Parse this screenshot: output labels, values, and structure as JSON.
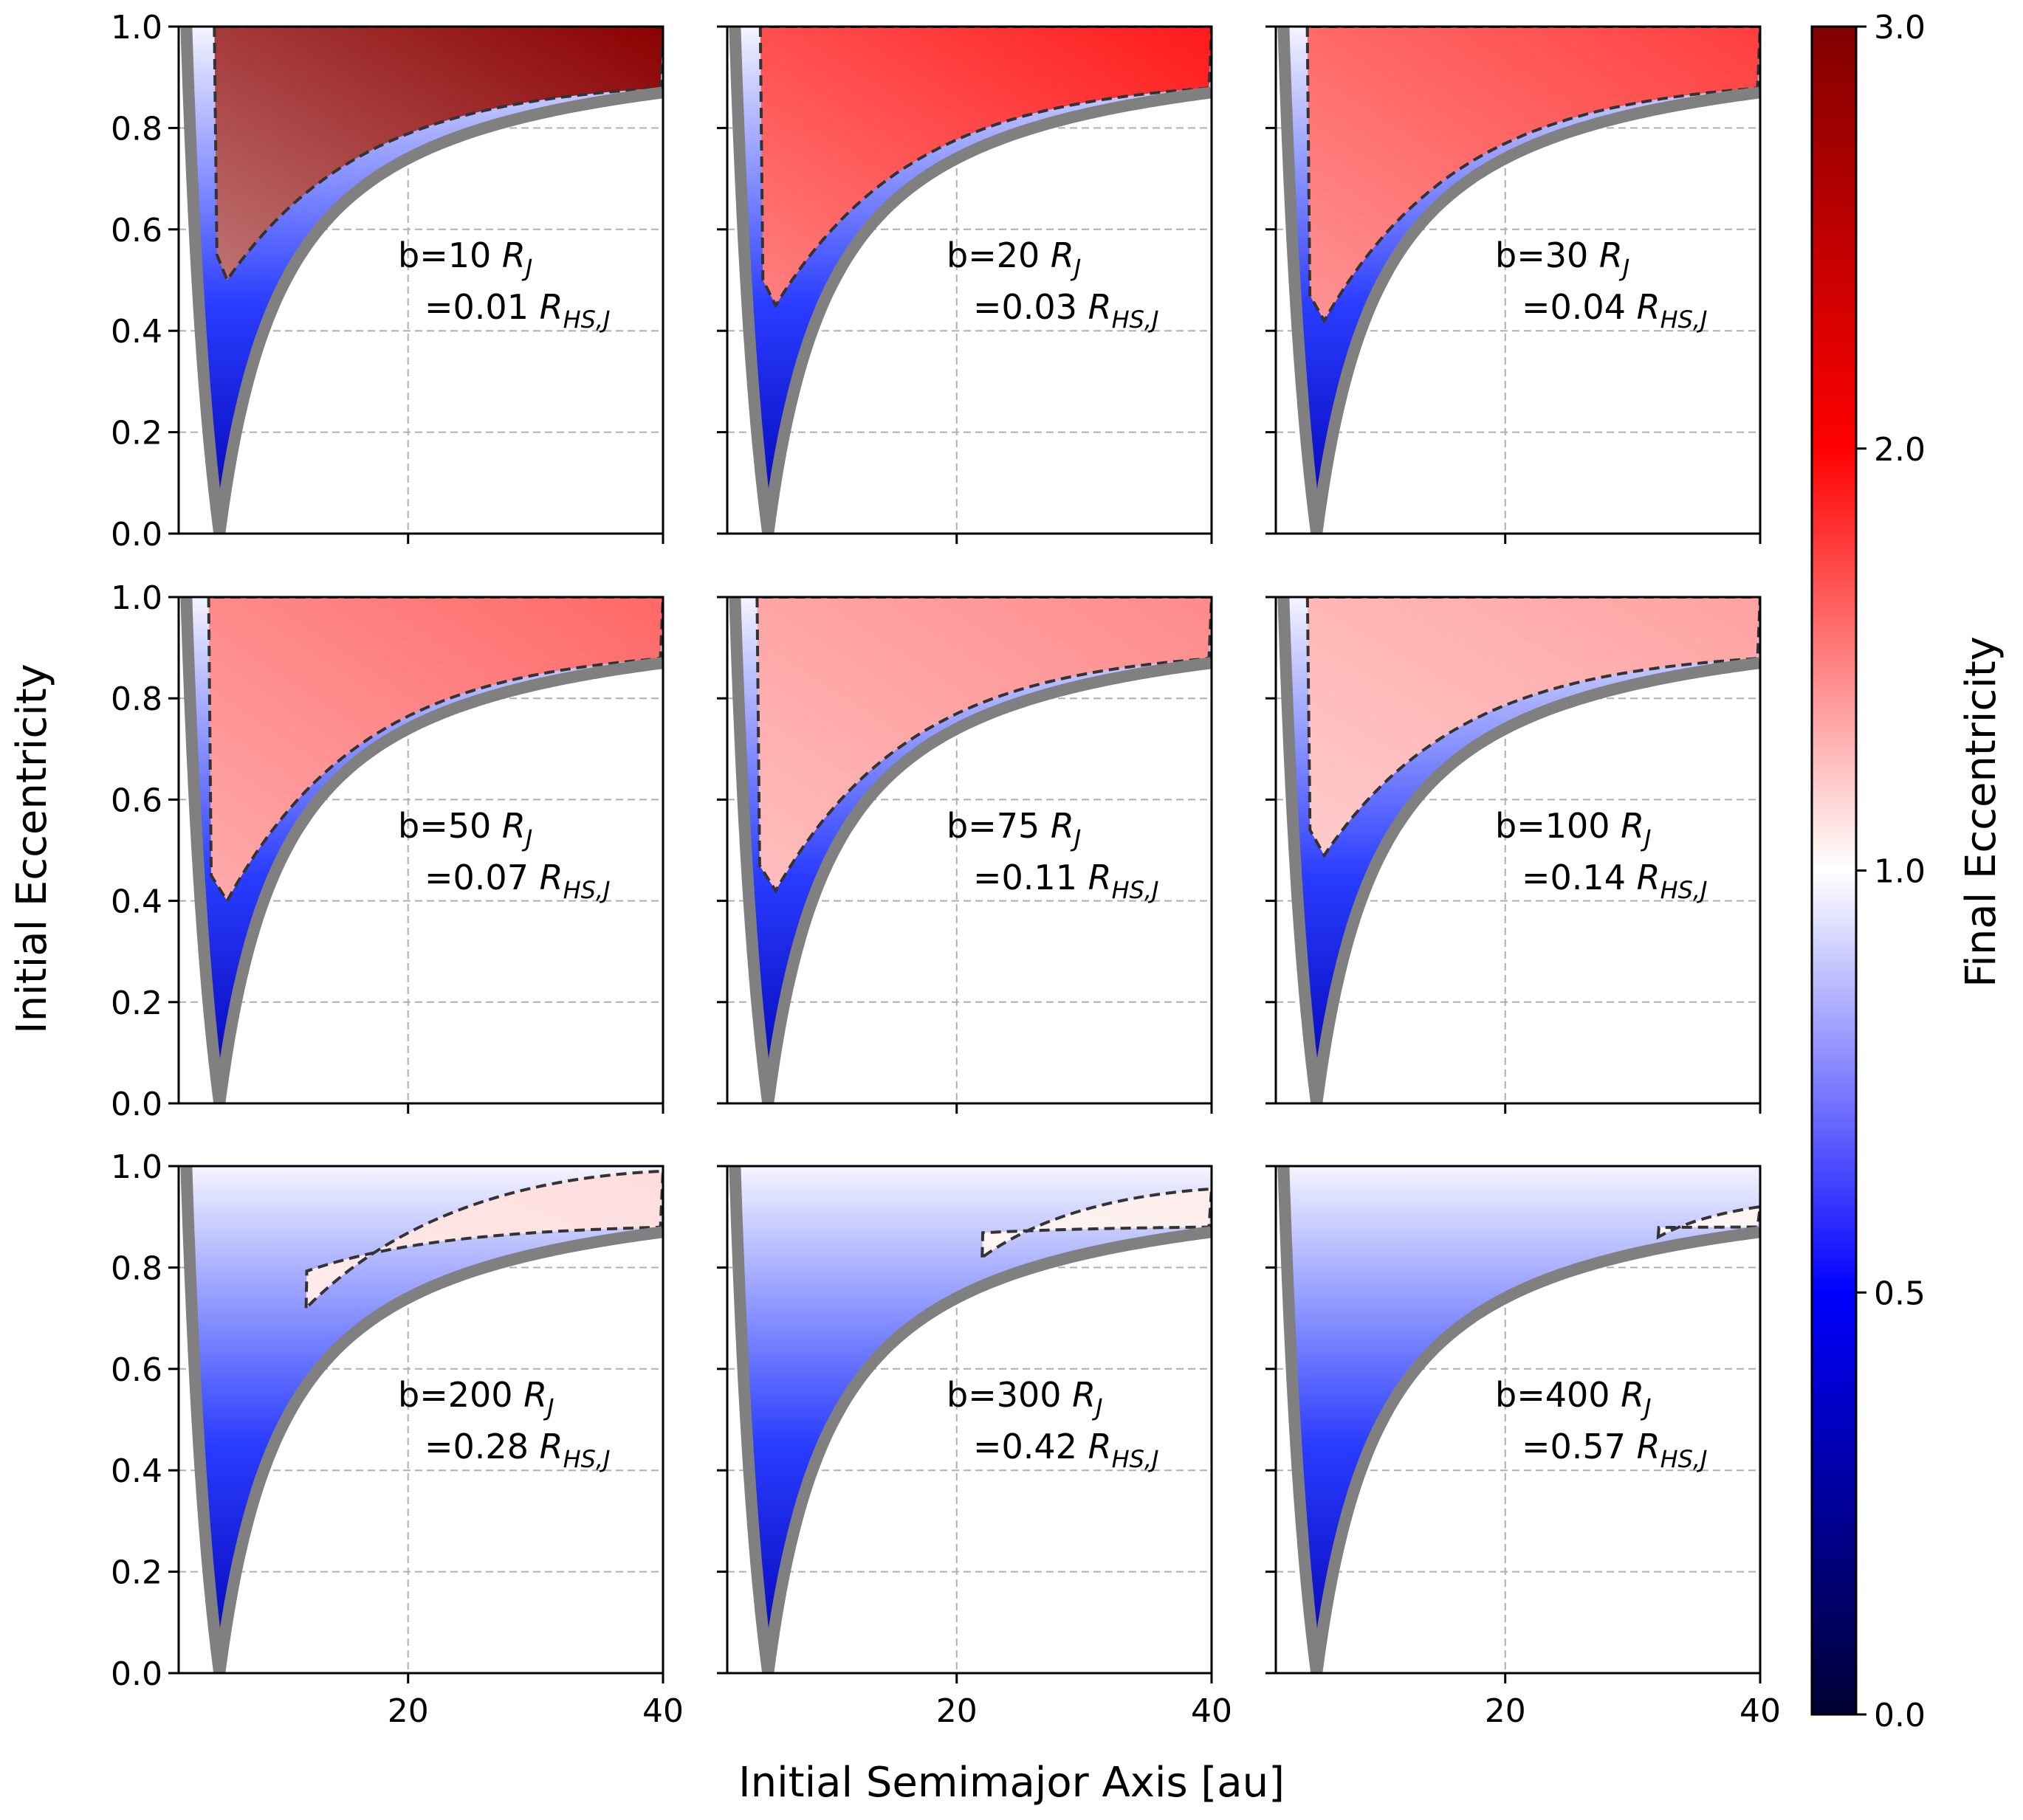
{
  "chart_data": {
    "type": "heatmap",
    "figure_xlabel": "Initial Semimajor Axis [au]",
    "figure_ylabel": "Initial Eccentricity",
    "xlim": [
      2,
      40
    ],
    "ylim": [
      0.0,
      1.0
    ],
    "x_ticks": [
      20,
      40
    ],
    "y_ticks": [
      0.0,
      0.2,
      0.4,
      0.6,
      0.8,
      1.0
    ],
    "y_tick_labels": [
      "0.0",
      "0.2",
      "0.4",
      "0.6",
      "0.8",
      "1.0"
    ],
    "x_tick_labels": [
      "20",
      "40"
    ],
    "grid": true,
    "colorbar": {
      "label": "Final Eccentricity",
      "ticks": [
        "0.0",
        "0.5",
        "1.0",
        "2.0",
        "3.0"
      ],
      "colormap": [
        "#000033",
        "#0000ff",
        "#ffffff",
        "#ff0000",
        "#800000"
      ]
    },
    "panels": [
      {
        "line1": "b=10 R",
        "line1_sub": "J",
        "line2": "=0.01 R",
        "line2_sub": "HS,J",
        "contour_min_e": 0.5,
        "red_intensity": 1.0,
        "sep_e_at_40": 0.88
      },
      {
        "line1": "b=20 R",
        "line1_sub": "J",
        "line2": "=0.03 R",
        "line2_sub": "HS,J",
        "contour_min_e": 0.45,
        "red_intensity": 0.78,
        "sep_e_at_40": 0.88
      },
      {
        "line1": "b=30 R",
        "line1_sub": "J",
        "line2": "=0.04 R",
        "line2_sub": "HS,J",
        "contour_min_e": 0.42,
        "red_intensity": 0.66,
        "sep_e_at_40": 0.88
      },
      {
        "line1": "b=50 R",
        "line1_sub": "J",
        "line2": "=0.07 R",
        "line2_sub": "HS,J",
        "contour_min_e": 0.4,
        "red_intensity": 0.52,
        "sep_e_at_40": 0.88
      },
      {
        "line1": "b=75 R",
        "line1_sub": "J",
        "line2": "=0.11 R",
        "line2_sub": "HS,J",
        "contour_min_e": 0.42,
        "red_intensity": 0.4,
        "sep_e_at_40": 0.88
      },
      {
        "line1": "b=100 R",
        "line1_sub": "J",
        "line2": "=0.14 R",
        "line2_sub": "HS,J",
        "contour_min_e": 0.49,
        "red_intensity": 0.32,
        "sep_e_at_40": 0.88
      },
      {
        "line1": "b=200 R",
        "line1_sub": "J",
        "line2": "=0.28 R",
        "line2_sub": "HS,J",
        "contour_min_e": 0.72,
        "red_intensity": 0.12,
        "sep_e_at_40": 0.88
      },
      {
        "line1": "b=300 R",
        "line1_sub": "J",
        "line2": "=0.42 R",
        "line2_sub": "HS,J",
        "contour_min_e": 0.82,
        "red_intensity": 0.06,
        "sep_e_at_40": 0.88
      },
      {
        "line1": "b=400 R",
        "line1_sub": "J",
        "line2": "=0.57 R",
        "line2_sub": "HS,J",
        "contour_min_e": 0.86,
        "red_intensity": 0.04,
        "sep_e_at_40": 0.88
      }
    ]
  }
}
